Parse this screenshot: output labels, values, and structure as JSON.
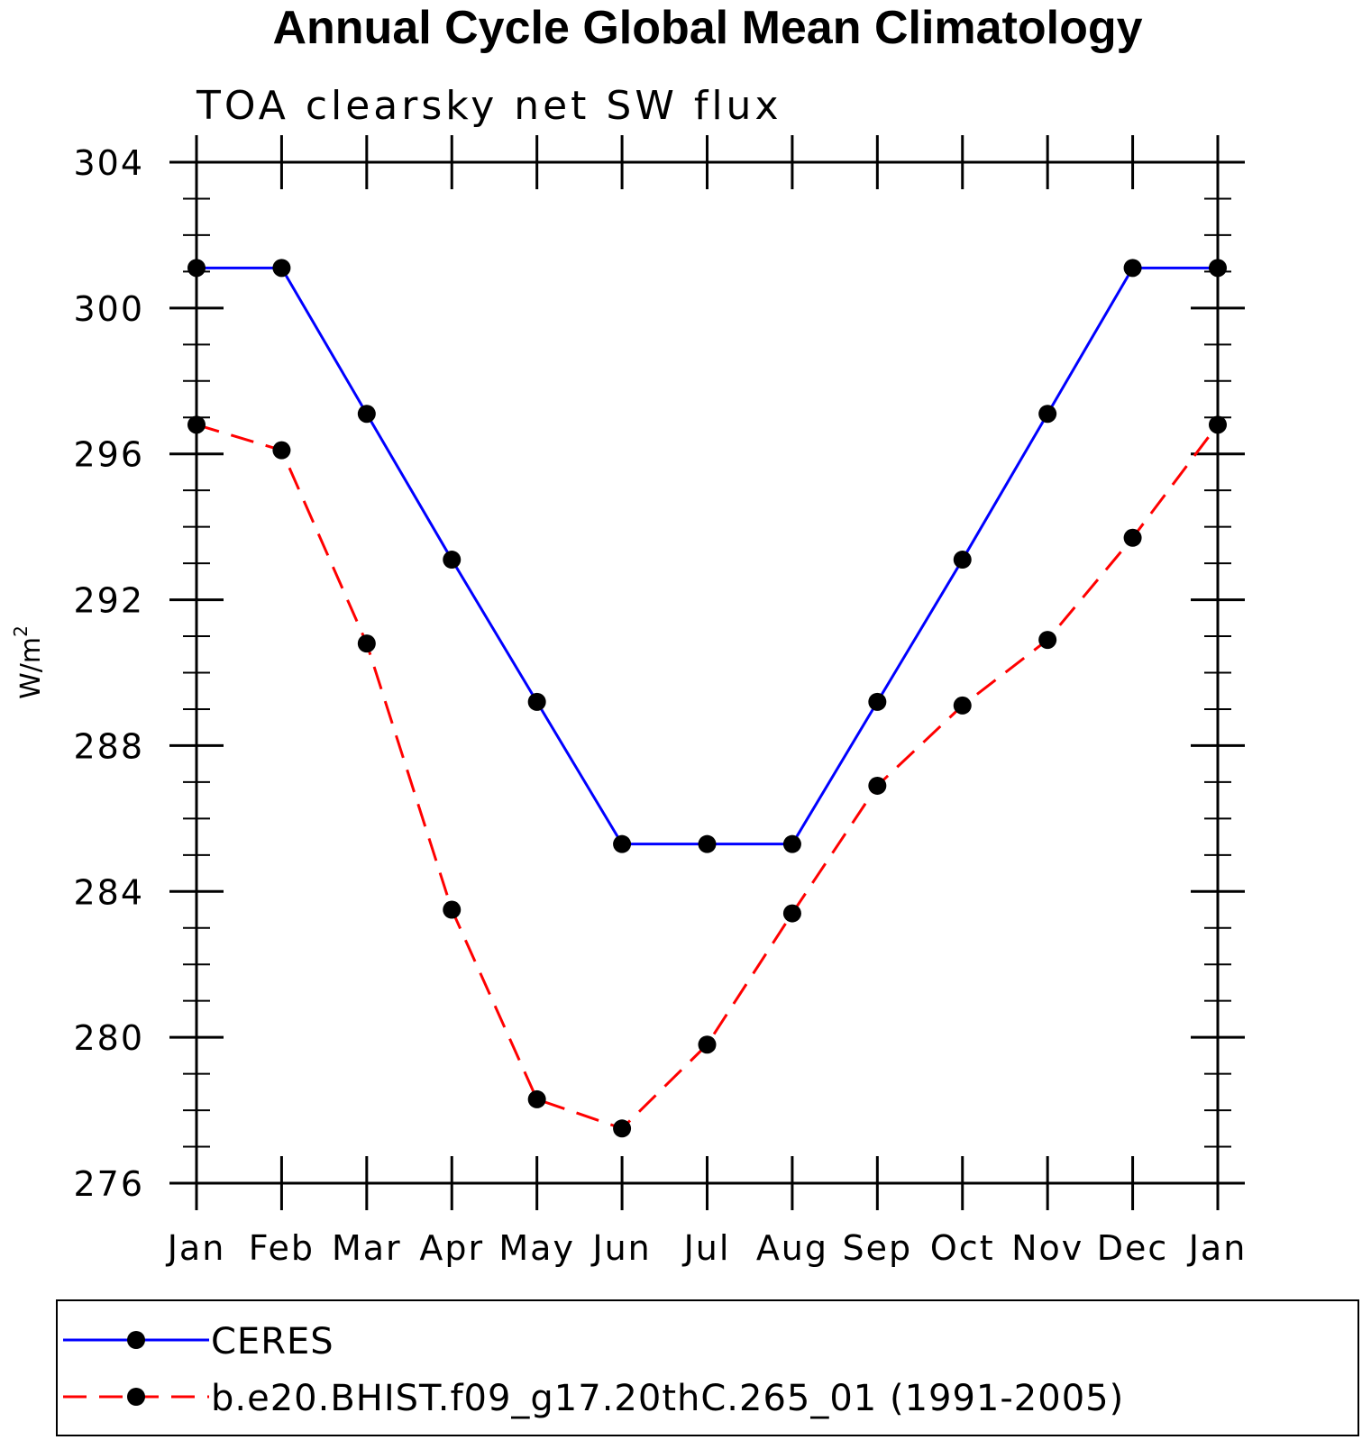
{
  "chart_data": {
    "type": "line",
    "title": "Annual Cycle Global Mean Climatology",
    "subtitle": "TOA clearsky net SW flux",
    "ylabel": "W/m",
    "ylabel_superscript": "2",
    "ylim": [
      276,
      304
    ],
    "yticks": [
      276,
      280,
      284,
      288,
      292,
      296,
      300,
      304
    ],
    "categories": [
      "Jan",
      "Feb",
      "Mar",
      "Apr",
      "May",
      "Jun",
      "Jul",
      "Aug",
      "Sep",
      "Oct",
      "Nov",
      "Dec",
      "Jan"
    ],
    "grid": false,
    "legend_position": "bottom",
    "series": [
      {
        "name": "CERES",
        "color": "#0000ff",
        "dash": "solid",
        "marker": "filled-circle",
        "values": [
          301.1,
          301.1,
          297.1,
          293.1,
          289.2,
          285.3,
          285.3,
          285.3,
          289.2,
          293.1,
          297.1,
          301.1,
          301.1
        ]
      },
      {
        "name": "b.e20.BHIST.f09_g17.20thC.265_01 (1991-2005)",
        "color": "#ff0000",
        "dash": "dashed",
        "marker": "filled-circle",
        "values": [
          296.8,
          296.1,
          290.8,
          283.5,
          278.3,
          277.5,
          279.8,
          283.4,
          286.9,
          289.1,
          290.9,
          293.7,
          296.8
        ]
      }
    ]
  }
}
